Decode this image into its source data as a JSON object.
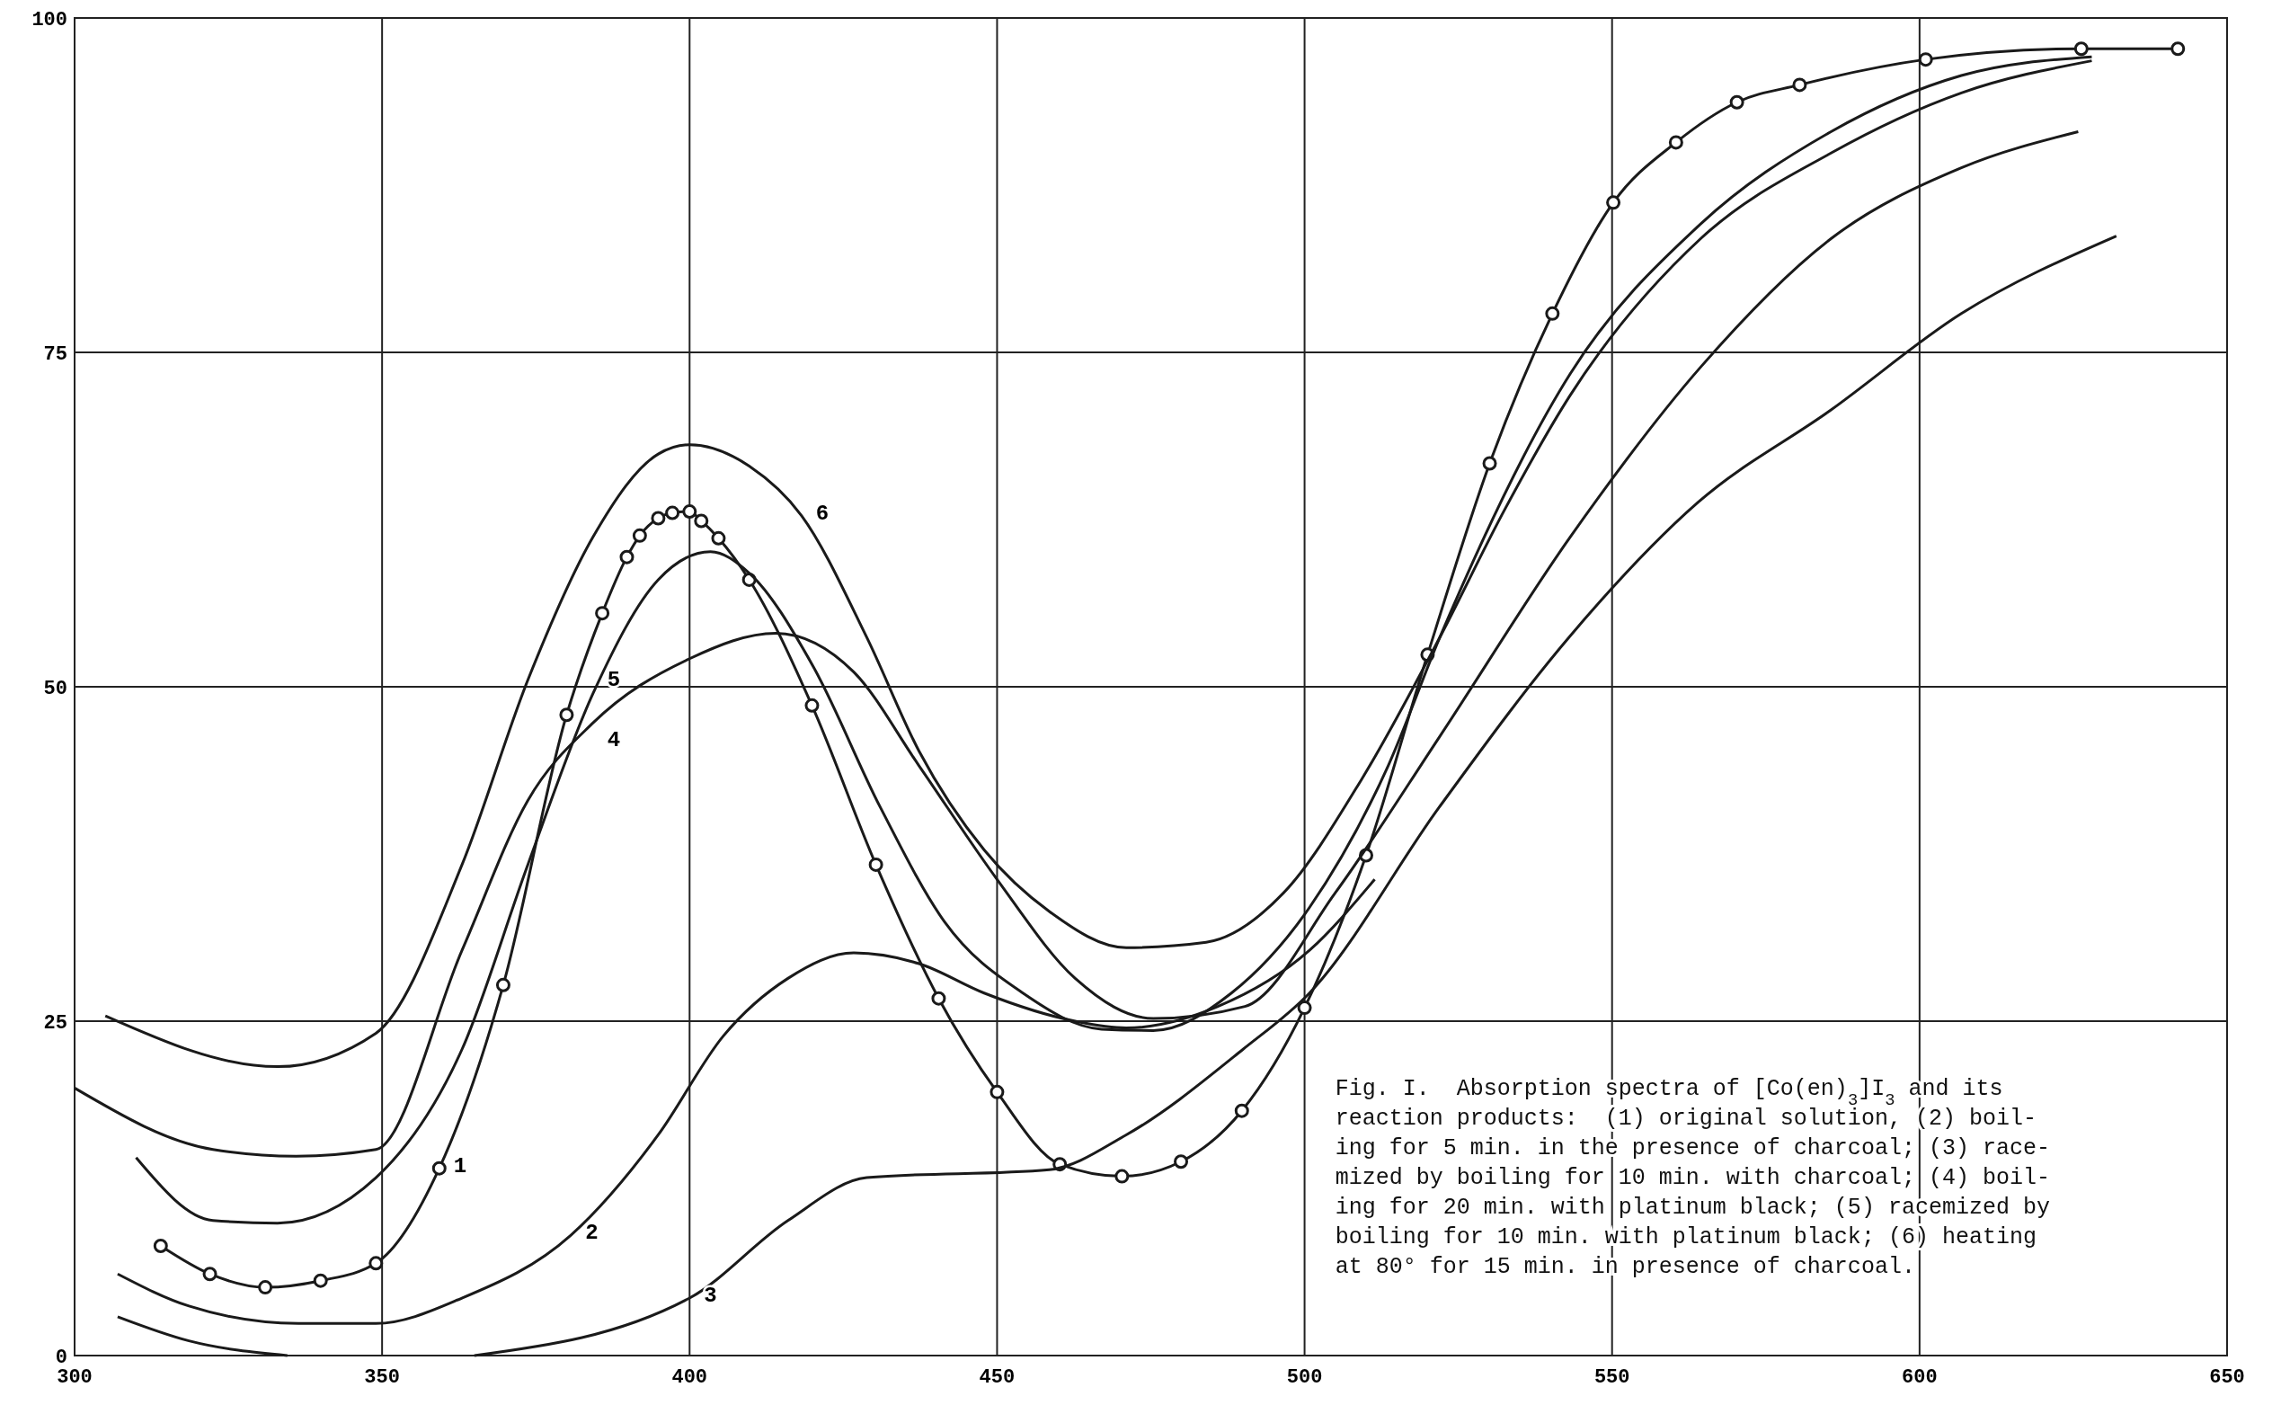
{
  "chart_data": {
    "type": "line",
    "xlim": [
      300,
      650
    ],
    "ylim": [
      0,
      100
    ],
    "xticks": [
      300,
      350,
      400,
      450,
      500,
      550,
      600,
      650
    ],
    "yticks": [
      0,
      25,
      50,
      75,
      100
    ],
    "grid": true,
    "line_style": "solid",
    "series": [
      {
        "color": "#1a1a1a",
        "marker": "circle",
        "x": [
          314,
          322,
          331,
          340,
          349,
          359.3,
          369.7,
          380,
          385.8,
          389.8,
          391.9,
          394.9,
          397.2,
          400,
          401.9,
          404.7,
          409.7,
          419.9,
          430.3,
          440.5,
          450,
          460.2,
          470.3,
          479.9,
          489.8,
          500,
          510,
          520,
          530.1,
          540.3,
          550.2,
          560.4,
          570.3,
          580.5,
          601,
          626.3,
          642
        ],
        "values": [
          8.2,
          6.1,
          5.1,
          5.6,
          6.9,
          14.0,
          27.7,
          47.9,
          55.5,
          59.7,
          61.3,
          62.6,
          63.0,
          63.1,
          62.4,
          61.1,
          58.0,
          48.6,
          36.7,
          26.7,
          19.7,
          14.3,
          13.4,
          14.5,
          18.3,
          26.0,
          37.4,
          52.4,
          66.7,
          77.9,
          86.2,
          90.7,
          93.7,
          95.0,
          96.9,
          97.7,
          97.7
        ]
      },
      {
        "color": "#1a1a1a",
        "marker": "none",
        "x": [
          307,
          318.6,
          336.4,
          349,
          363,
          380.7,
          394.9,
          405.5,
          416,
          426.7,
          437.3,
          447.9,
          462.7,
          471,
          485.9,
          500.8,
          511.4
        ],
        "values": [
          6.1,
          3.7,
          2.4,
          2.4,
          4.3,
          9.0,
          16.5,
          23.9,
          28.2,
          30.1,
          29.3,
          27.1,
          25.0,
          24.5,
          26.1,
          30.3,
          35.6
        ]
      },
      {
        "color": "#1a1a1a",
        "marker": "none",
        "x": [
          307,
          318.6,
          334.6,
          335,
          365,
          400,
          416,
          428.8,
          458.5,
          471,
          490,
          500.8,
          521.9,
          543,
          564,
          585.6,
          606.8,
          632
        ],
        "values": [
          2.9,
          1.1,
          0,
          null,
          0,
          4.3,
          10.1,
          13.3,
          13.9,
          16.5,
          22.9,
          27.1,
          41,
          53.7,
          63.8,
          70.7,
          77.9,
          83.7
        ]
      },
      {
        "color": "#1a1a1a",
        "marker": "none",
        "x": [
          300,
          322.5,
          336,
          349,
          363,
          373.7,
          384.3,
          400,
          414,
          426.7,
          437.3,
          450,
          462.7,
          475.4,
          490.3,
          505,
          522,
          543.2,
          564.4,
          585.6,
          606.8,
          625.8
        ],
        "values": [
          20,
          15.4,
          14.9,
          15.4,
          30.3,
          41.5,
          47.3,
          52.1,
          54.0,
          51.1,
          44.1,
          35.6,
          28.2,
          25.2,
          26.1,
          34.6,
          46.3,
          61.2,
          73.9,
          83.5,
          88.8,
          91.5
        ]
      },
      {
        "color": "#1a1a1a",
        "marker": "none",
        "x": [
          310,
          322.5,
          333,
          349,
          363,
          373.7,
          384.3,
          394.9,
          403.4,
          409.7,
          420,
          431,
          441.5,
          454.2,
          467,
          475.4,
          488.1,
          500.8,
          513.6,
          522,
          543.2,
          564.4,
          585.6,
          606.8,
          628
        ],
        "values": [
          14.8,
          10.1,
          9.9,
          13.3,
          22.9,
          36.7,
          49.5,
          58,
          60.1,
          58.5,
          51.6,
          41,
          32.4,
          27.1,
          24.4,
          24.3,
          27.1,
          33.5,
          44.1,
          53.7,
          73.4,
          84.6,
          91.5,
          95.7,
          97.1
        ]
      },
      {
        "color": "#1a1a1a",
        "marker": "none",
        "x": [
          305,
          333,
          349,
          363,
          373.7,
          384.3,
          394.9,
          400,
          409.7,
          418.2,
          428.8,
          437.3,
          447.9,
          458.5,
          471,
          484,
          496.6,
          509.3,
          522,
          532.6,
          543.2,
          564.4,
          585.6,
          606.8,
          628
        ],
        "values": [
          25.4,
          21.6,
          24.1,
          36.7,
          50.5,
          61.2,
          67.4,
          68.1,
          66.5,
          62.8,
          53.7,
          45.2,
          37.8,
          33.2,
          30.5,
          30.9,
          34.6,
          43.1,
          53.7,
          63.3,
          71.8,
          83.5,
          89.9,
          94.4,
          96.8
        ]
      }
    ],
    "annotations": [
      {
        "text": "1",
        "x": 359.3,
        "y": 14.0
      },
      {
        "text": "2",
        "x": 380.7,
        "y": 9.0
      },
      {
        "text": "3",
        "x": 400,
        "y": 4.3
      },
      {
        "text": "4",
        "x": 384.3,
        "y": 47.3
      },
      {
        "text": "5",
        "x": 384.3,
        "y": 49.5
      },
      {
        "text": "6",
        "x": 418.2,
        "y": 62.8
      },
      "Fig. I.  Absorption spectra of [Co(en)$_{3}$]I$_{3}$ and its",
      "reaction products:  (1) original solution, (2) boil-",
      "ing for 5 min. in the presence of charcoal; (3) race-",
      "mized by boiling for 10 min. with charcoal; (4) boil-",
      "ing for 20 min. with platinum black; (5) racemized by",
      "boiling for 10 min. with platinum black; (6) heating",
      "at 80° for 15 min. in presence of charcoal."
    ]
  }
}
